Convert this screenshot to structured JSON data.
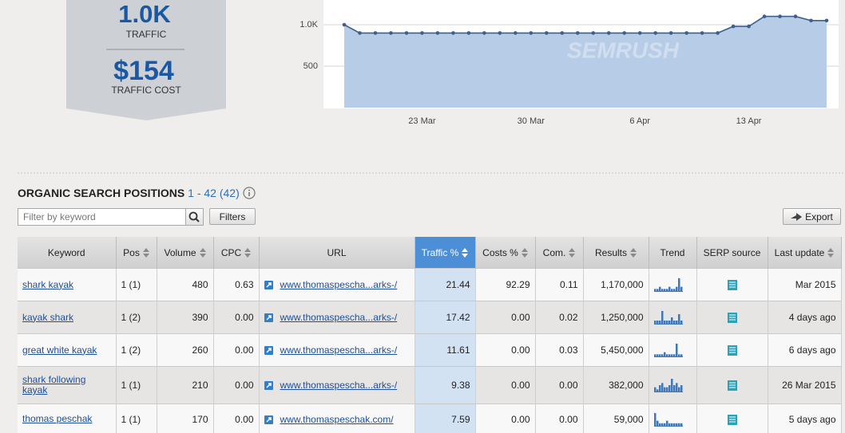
{
  "summary": {
    "traffic_value": "1.0K",
    "traffic_label": "TRAFFIC",
    "cost_value": "$154",
    "cost_label": "TRAFFIC COST"
  },
  "chart_data": {
    "type": "line",
    "watermark": "SEMRUSH",
    "categories": [
      null,
      null,
      null,
      null,
      null,
      "23 Mar",
      null,
      null,
      null,
      null,
      null,
      null,
      "30 Mar",
      null,
      null,
      null,
      null,
      null,
      null,
      "6 Apr",
      null,
      null,
      null,
      null,
      null,
      null,
      "13 Apr",
      null,
      null,
      null,
      null,
      null
    ],
    "series": [
      {
        "color": "#3e5f8c",
        "fill": "#b7cde7",
        "values": [
          1000,
          900,
          900,
          900,
          900,
          900,
          900,
          900,
          900,
          900,
          900,
          900,
          900,
          900,
          900,
          900,
          900,
          900,
          900,
          900,
          900,
          900,
          900,
          900,
          900,
          980,
          980,
          1100,
          1100,
          1100,
          1050,
          1050
        ]
      }
    ],
    "ylim": [
      0,
      1250
    ],
    "yticks": [
      {
        "value": 1000,
        "label": "1.0K"
      },
      500
    ],
    "grid": true
  },
  "section": {
    "title": "ORGANIC SEARCH POSITIONS",
    "range": "1 - 42",
    "total": "(42)",
    "filter_placeholder": "Filter by keyword",
    "filters_button": "Filters",
    "export_button": "Export"
  },
  "table": {
    "headers": [
      "Keyword",
      "Pos",
      "Volume",
      "CPC",
      "URL",
      "Traffic %",
      "Costs %",
      "Com.",
      "Results",
      "Trend",
      "SERP source",
      "Last update"
    ],
    "rows": [
      {
        "keyword": "shark kayak",
        "pos": "1 (1)",
        "volume": "480",
        "cpc": "0.63",
        "url": "www.thomaspescha...arks-/",
        "traffic": "21.44",
        "costs": "92.29",
        "com": "0.11",
        "results": "1,170,000",
        "trend": [
          1,
          1,
          2,
          1,
          1,
          1,
          2,
          1,
          1,
          2,
          6,
          2
        ],
        "last_update": "Mar 2015"
      },
      {
        "keyword": "kayak shark",
        "pos": "1 (2)",
        "volume": "390",
        "cpc": "0.00",
        "url": "www.thomaspescha...arks-/",
        "traffic": "17.42",
        "costs": "0.00",
        "com": "0.02",
        "results": "1,250,000",
        "trend": [
          1,
          1,
          1,
          4,
          1,
          1,
          1,
          2,
          1,
          1,
          3,
          1
        ],
        "last_update": "4 days ago"
      },
      {
        "keyword": "great white kayak",
        "pos": "1 (2)",
        "volume": "260",
        "cpc": "0.00",
        "url": "www.thomaspescha...arks-/",
        "traffic": "11.61",
        "costs": "0.00",
        "com": "0.03",
        "results": "5,450,000",
        "trend": [
          1,
          1,
          1,
          1,
          2,
          1,
          1,
          1,
          1,
          6,
          1,
          1
        ],
        "last_update": "6 days ago"
      },
      {
        "keyword": "shark following kayak",
        "pos": "1 (1)",
        "volume": "210",
        "cpc": "0.00",
        "url": "www.thomaspescha...arks-/",
        "traffic": "9.38",
        "costs": "0.00",
        "com": "0.00",
        "results": "382,000",
        "trend": [
          2,
          1,
          3,
          4,
          2,
          2,
          3,
          6,
          3,
          4,
          2,
          3
        ],
        "last_update": "26 Mar 2015"
      },
      {
        "keyword": "thomas peschak",
        "pos": "1 (1)",
        "volume": "170",
        "cpc": "0.00",
        "url": "www.thomaspeschak.com/",
        "traffic": "7.59",
        "costs": "0.00",
        "com": "0.00",
        "results": "59,000",
        "trend": [
          5,
          2,
          1,
          1,
          1,
          2,
          1,
          1,
          1,
          1,
          1,
          1
        ],
        "last_update": "5 days ago"
      }
    ]
  }
}
